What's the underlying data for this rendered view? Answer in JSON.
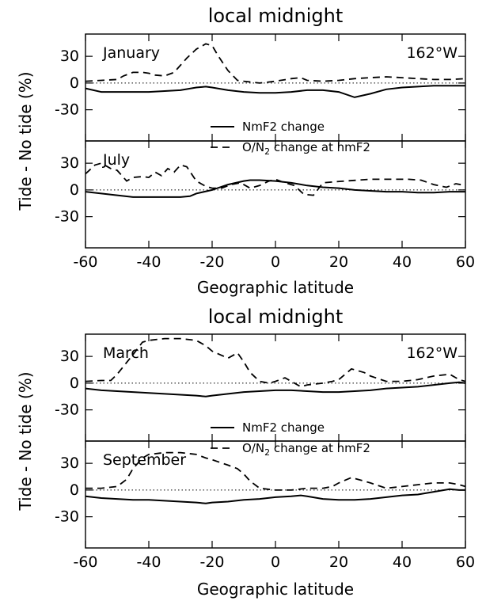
{
  "chart_data": [
    {
      "type": "line",
      "title": "local midnight",
      "ylabel": "Tide - No tide (%)",
      "xlabel": "Geographic latitude",
      "xlim": [
        -60,
        60
      ],
      "x_ticks": [
        "-60",
        "-40",
        "-20",
        "0",
        "20",
        "40",
        "60"
      ],
      "longitude_label": "162°W",
      "legend": {
        "placement": "center-right",
        "solid": "NmF2 change",
        "dashed_prefix": "O/N",
        "dashed_sub": "2",
        "dashed_suffix": " change at hmF2"
      },
      "panels": [
        {
          "month": "January",
          "ylim": [
            -65,
            55
          ],
          "y_ticks": [
            30,
            0,
            -30
          ],
          "y_tick_labels": [
            "30",
            "0",
            "-30"
          ],
          "series": [
            {
              "name": "NmF2 change",
              "style": "solid",
              "x": [
                -60,
                -55,
                -50,
                -45,
                -40,
                -35,
                -30,
                -25,
                -22,
                -20,
                -15,
                -10,
                -5,
                0,
                5,
                10,
                15,
                20,
                25,
                30,
                35,
                40,
                45,
                50,
                55,
                60
              ],
              "y": [
                -6,
                -10,
                -10,
                -10,
                -10,
                -9,
                -8,
                -5,
                -4,
                -5,
                -8,
                -10,
                -11,
                -11,
                -10,
                -8,
                -8,
                -10,
                -16,
                -12,
                -7,
                -5,
                -4,
                -3,
                -3,
                -3
              ]
            },
            {
              "name": "O/N2 change at hmF2",
              "style": "dashed",
              "x": [
                -60,
                -55,
                -50,
                -48,
                -45,
                -42,
                -40,
                -38,
                -35,
                -32,
                -30,
                -28,
                -25,
                -22,
                -20,
                -18,
                -15,
                -12,
                -10,
                -5,
                0,
                5,
                8,
                10,
                15,
                20,
                25,
                30,
                35,
                40,
                45,
                50,
                55,
                60
              ],
              "y": [
                2,
                3,
                4,
                8,
                12,
                12,
                11,
                9,
                8,
                12,
                20,
                28,
                38,
                44,
                42,
                30,
                14,
                3,
                2,
                0,
                2,
                5,
                6,
                3,
                2,
                3,
                5,
                6,
                7,
                6,
                5,
                4,
                4,
                5
              ]
            }
          ]
        },
        {
          "month": "July",
          "ylim": [
            -65,
            55
          ],
          "y_ticks": [
            30,
            0,
            -30
          ],
          "y_tick_labels": [
            "30",
            "0",
            "-30"
          ],
          "series": [
            {
              "name": "NmF2 change",
              "style": "solid",
              "x": [
                -60,
                -55,
                -50,
                -45,
                -40,
                -35,
                -30,
                -27,
                -25,
                -20,
                -15,
                -10,
                -8,
                -5,
                0,
                5,
                10,
                15,
                20,
                25,
                30,
                35,
                40,
                45,
                50,
                55,
                60
              ],
              "y": [
                -2,
                -4,
                -6,
                -8,
                -8,
                -8,
                -8,
                -7,
                -4,
                0,
                6,
                10,
                11,
                11,
                10,
                8,
                5,
                3,
                2,
                0,
                -1,
                -2,
                -2,
                -3,
                -3,
                -2,
                -2
              ]
            },
            {
              "name": "O/N2 change at hmF2",
              "style": "dashed",
              "x": [
                -60,
                -57,
                -55,
                -52,
                -50,
                -47,
                -45,
                -42,
                -40,
                -38,
                -36,
                -34,
                -32,
                -30,
                -28,
                -25,
                -22,
                -20,
                -17,
                -14,
                -11,
                -8,
                -5,
                -2,
                0,
                3,
                6,
                9,
                12,
                15,
                18,
                22,
                26,
                30,
                34,
                38,
                42,
                46,
                50,
                54,
                57,
                60
              ],
              "y": [
                18,
                28,
                30,
                24,
                22,
                10,
                14,
                15,
                14,
                20,
                16,
                24,
                20,
                28,
                26,
                10,
                4,
                2,
                2,
                6,
                8,
                2,
                5,
                10,
                12,
                8,
                5,
                -5,
                -6,
                8,
                9,
                10,
                11,
                12,
                12,
                12,
                12,
                11,
                6,
                3,
                7,
                5
              ]
            }
          ]
        }
      ]
    },
    {
      "type": "line",
      "title": "local midnight",
      "ylabel": "Tide - No tide (%)",
      "xlabel": "Geographic latitude",
      "xlim": [
        -60,
        60
      ],
      "x_ticks": [
        "-60",
        "-40",
        "-20",
        "0",
        "20",
        "40",
        "60"
      ],
      "longitude_label": "162°W",
      "legend": {
        "placement": "center-right",
        "solid": "NmF2 change",
        "dashed_prefix": "O/N",
        "dashed_sub": "2",
        "dashed_suffix": " change at hmF2"
      },
      "panels": [
        {
          "month": "March",
          "ylim": [
            -65,
            55
          ],
          "y_ticks": [
            30,
            0,
            -30
          ],
          "y_tick_labels": [
            "30",
            "0",
            "-30"
          ],
          "series": [
            {
              "name": "NmF2 change",
              "style": "solid",
              "x": [
                -60,
                -55,
                -50,
                -45,
                -40,
                -35,
                -30,
                -25,
                -22,
                -20,
                -15,
                -10,
                -5,
                0,
                5,
                10,
                15,
                20,
                25,
                30,
                35,
                40,
                45,
                50,
                55,
                58,
                60
              ],
              "y": [
                -6,
                -8,
                -9,
                -10,
                -11,
                -12,
                -13,
                -14,
                -15,
                -14,
                -12,
                -10,
                -9,
                -8,
                -8,
                -9,
                -10,
                -10,
                -9,
                -8,
                -6,
                -5,
                -4,
                -2,
                0,
                1,
                0
              ]
            },
            {
              "name": "O/N2 change at hmF2",
              "style": "dashed",
              "x": [
                -60,
                -55,
                -52,
                -50,
                -45,
                -42,
                -40,
                -35,
                -30,
                -25,
                -22,
                -20,
                -15,
                -12,
                -10,
                -8,
                -5,
                -2,
                0,
                3,
                5,
                8,
                10,
                15,
                18,
                20,
                24,
                28,
                30,
                35,
                40,
                45,
                50,
                55,
                58,
                60
              ],
              "y": [
                2,
                3,
                3,
                10,
                32,
                46,
                48,
                50,
                50,
                48,
                42,
                36,
                28,
                34,
                24,
                12,
                2,
                0,
                2,
                6,
                2,
                -4,
                -2,
                0,
                2,
                4,
                16,
                12,
                8,
                2,
                2,
                4,
                8,
                10,
                4,
                2
              ]
            }
          ]
        },
        {
          "month": "September",
          "ylim": [
            -65,
            55
          ],
          "y_ticks": [
            30,
            0,
            -30
          ],
          "y_tick_labels": [
            "30",
            "0",
            "-30"
          ],
          "series": [
            {
              "name": "NmF2 change",
              "style": "solid",
              "x": [
                -60,
                -55,
                -50,
                -45,
                -40,
                -35,
                -30,
                -25,
                -22,
                -20,
                -15,
                -10,
                -5,
                0,
                5,
                8,
                10,
                15,
                20,
                25,
                30,
                35,
                40,
                45,
                50,
                55,
                58,
                60
              ],
              "y": [
                -7,
                -9,
                -10,
                -11,
                -11,
                -12,
                -13,
                -14,
                -15,
                -14,
                -13,
                -11,
                -10,
                -8,
                -7,
                -6,
                -7,
                -10,
                -11,
                -11,
                -10,
                -8,
                -6,
                -5,
                -2,
                1,
                0,
                0
              ]
            },
            {
              "name": "O/N2 change at hmF2",
              "style": "dashed",
              "x": [
                -60,
                -55,
                -50,
                -47,
                -45,
                -42,
                -40,
                -35,
                -30,
                -25,
                -22,
                -20,
                -15,
                -12,
                -10,
                -8,
                -5,
                0,
                5,
                10,
                15,
                18,
                20,
                24,
                28,
                30,
                35,
                40,
                45,
                50,
                55,
                58,
                60
              ],
              "y": [
                2,
                2,
                4,
                12,
                24,
                36,
                40,
                42,
                42,
                40,
                36,
                34,
                28,
                24,
                18,
                10,
                2,
                0,
                0,
                2,
                2,
                4,
                8,
                14,
                10,
                8,
                2,
                4,
                6,
                8,
                8,
                6,
                4
              ]
            }
          ]
        }
      ]
    }
  ]
}
